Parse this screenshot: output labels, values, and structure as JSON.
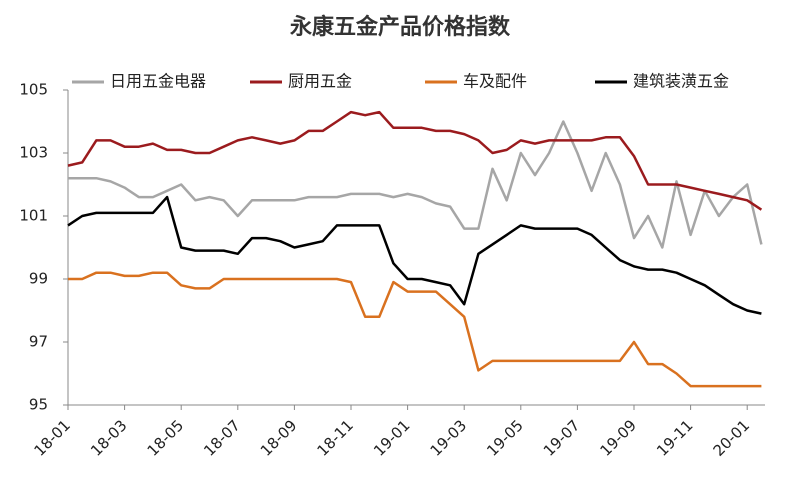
{
  "chart_data": {
    "type": "line",
    "title": "永康五金产品价格指数",
    "categories": [
      "18-01",
      null,
      null,
      null,
      "18-03",
      null,
      null,
      null,
      "18-05",
      null,
      null,
      null,
      "18-07",
      null,
      null,
      null,
      "18-09",
      null,
      null,
      null,
      "18-11",
      null,
      null,
      null,
      "19-01",
      null,
      null,
      null,
      "19-03",
      null,
      null,
      null,
      "19-05",
      null,
      null,
      null,
      "19-07",
      null,
      null,
      null,
      "19-09",
      null,
      null,
      null,
      "19-11",
      null,
      null,
      null,
      "20-01",
      null
    ],
    "ylim": [
      95,
      105
    ],
    "yticks": [
      95,
      97,
      99,
      101,
      103,
      105
    ],
    "legend": "top",
    "series": [
      {
        "name": "日用五金电器",
        "color": "#a6a6a6",
        "values": [
          102.2,
          102.2,
          102.2,
          102.1,
          101.9,
          101.6,
          101.6,
          101.8,
          102.0,
          101.5,
          101.6,
          101.5,
          101.0,
          101.5,
          101.5,
          101.5,
          101.5,
          101.6,
          101.6,
          101.6,
          101.7,
          101.7,
          101.7,
          101.6,
          101.7,
          101.6,
          101.4,
          101.3,
          100.6,
          100.6,
          102.5,
          101.5,
          103.0,
          102.3,
          103.0,
          104.0,
          103.0,
          101.8,
          103.0,
          102.0,
          100.3,
          101.0,
          100.0,
          102.1,
          100.4,
          101.8,
          101.0,
          101.6,
          102.0,
          100.1
        ]
      },
      {
        "name": "厨用五金",
        "color": "#9b1b1e",
        "values": [
          102.6,
          102.7,
          103.4,
          103.4,
          103.2,
          103.2,
          103.3,
          103.1,
          103.1,
          103.0,
          103.0,
          103.2,
          103.4,
          103.5,
          103.4,
          103.3,
          103.4,
          103.7,
          103.7,
          104.0,
          104.3,
          104.2,
          104.3,
          103.8,
          103.8,
          103.8,
          103.7,
          103.7,
          103.6,
          103.4,
          103.0,
          103.1,
          103.4,
          103.3,
          103.4,
          103.4,
          103.4,
          103.4,
          103.5,
          103.5,
          102.9,
          102.0,
          102.0,
          102.0,
          101.9,
          101.8,
          101.7,
          101.6,
          101.5,
          101.2
        ]
      },
      {
        "name": "车及配件",
        "color": "#d9711f",
        "values": [
          99.0,
          99.0,
          99.2,
          99.2,
          99.1,
          99.1,
          99.2,
          99.2,
          98.8,
          98.7,
          98.7,
          99.0,
          99.0,
          99.0,
          99.0,
          99.0,
          99.0,
          99.0,
          99.0,
          99.0,
          98.9,
          97.8,
          97.8,
          98.9,
          98.6,
          98.6,
          98.6,
          98.2,
          97.8,
          96.1,
          96.4,
          96.4,
          96.4,
          96.4,
          96.4,
          96.4,
          96.4,
          96.4,
          96.4,
          96.4,
          97.0,
          96.3,
          96.3,
          96.0,
          95.6,
          95.6,
          95.6,
          95.6,
          95.6,
          95.6
        ]
      },
      {
        "name": "建筑装潢五金",
        "color": "#000000",
        "values": [
          100.7,
          101.0,
          101.1,
          101.1,
          101.1,
          101.1,
          101.1,
          101.6,
          100.0,
          99.9,
          99.9,
          99.9,
          99.8,
          100.3,
          100.3,
          100.2,
          100.0,
          100.1,
          100.2,
          100.7,
          100.7,
          100.7,
          100.7,
          99.5,
          99.0,
          99.0,
          98.9,
          98.8,
          98.2,
          99.8,
          100.1,
          100.4,
          100.7,
          100.6,
          100.6,
          100.6,
          100.6,
          100.4,
          100.0,
          99.6,
          99.4,
          99.3,
          99.3,
          99.2,
          99.0,
          98.8,
          98.5,
          98.2,
          98.0,
          97.9
        ]
      }
    ]
  }
}
